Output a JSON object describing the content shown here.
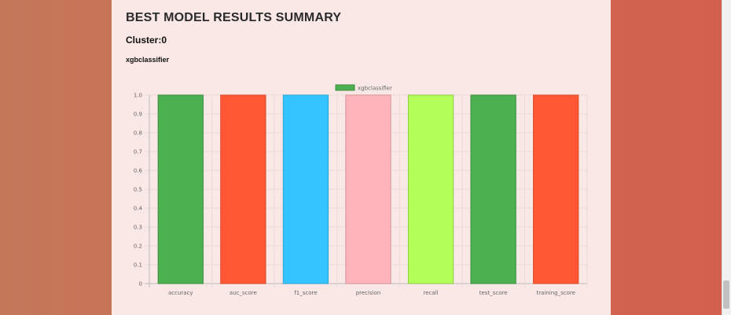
{
  "page": {
    "title": "BEST MODEL RESULTS SUMMARY",
    "cluster_label": "Cluster:0",
    "model_name": "xgbclassifier"
  },
  "chart_data": {
    "type": "bar",
    "categories": [
      "accuracy",
      "auc_score",
      "f1_score",
      "precision",
      "recall",
      "test_score",
      "training_score"
    ],
    "series": [
      {
        "name": "xgbclassifier",
        "values": [
          1.0,
          1.0,
          1.0,
          1.0,
          1.0,
          1.0,
          1.0
        ]
      }
    ],
    "bar_colors": [
      "#4caf50",
      "#ff5733",
      "#33c4ff",
      "#ffb3ba",
      "#b3ff57",
      "#4caf50",
      "#ff5733"
    ],
    "legend_color": "#4caf50",
    "legend_position": "top-center",
    "ylim": [
      0,
      1.0
    ],
    "yticks": [
      "0",
      "0.1",
      "0.2",
      "0.3",
      "0.4",
      "0.5",
      "0.6",
      "0.7",
      "0.8",
      "0.9",
      "1.0"
    ],
    "grid": true
  }
}
